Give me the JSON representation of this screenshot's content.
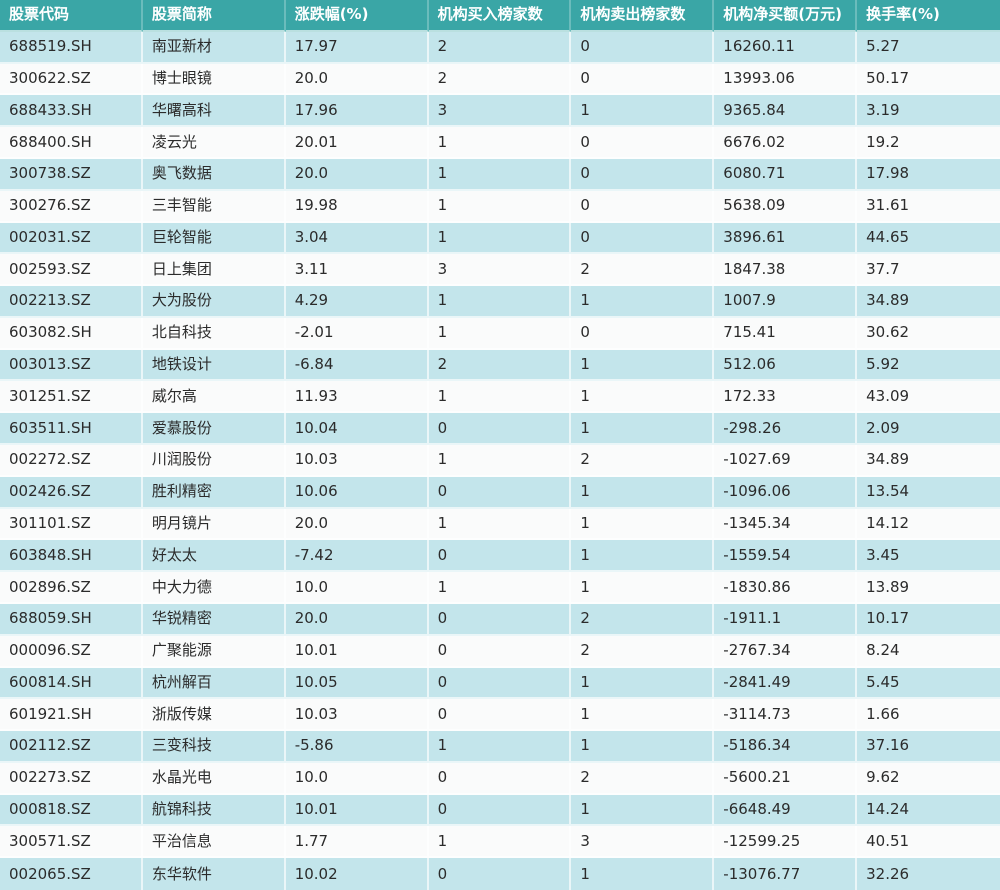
{
  "colors": {
    "header_bg": "#3aa6a6",
    "header_text": "#ffffff",
    "row_teal_bg": "#c3e5eb",
    "row_white_bg": "#fafbfb",
    "body_text": "#2b2b2b",
    "grid_line": "rgba(255,255,255,0.65)"
  },
  "chart_data": {
    "type": "table",
    "title": "",
    "legend": false,
    "grid": true,
    "columns": [
      "股票代码",
      "股票简称",
      "涨跌幅(%)",
      "机构买入榜家数",
      "机构卖出榜家数",
      "机构净买额(万元)",
      "换手率(%)"
    ],
    "rows": [
      [
        "688519.SH",
        "南亚新材",
        "17.97",
        "2",
        "0",
        "16260.11",
        "5.27"
      ],
      [
        "300622.SZ",
        "博士眼镜",
        "20.0",
        "2",
        "0",
        "13993.06",
        "50.17"
      ],
      [
        "688433.SH",
        "华曙高科",
        "17.96",
        "3",
        "1",
        "9365.84",
        "3.19"
      ],
      [
        "688400.SH",
        "凌云光",
        "20.01",
        "1",
        "0",
        "6676.02",
        "19.2"
      ],
      [
        "300738.SZ",
        "奥飞数据",
        "20.0",
        "1",
        "0",
        "6080.71",
        "17.98"
      ],
      [
        "300276.SZ",
        "三丰智能",
        "19.98",
        "1",
        "0",
        "5638.09",
        "31.61"
      ],
      [
        "002031.SZ",
        "巨轮智能",
        "3.04",
        "1",
        "0",
        "3896.61",
        "44.65"
      ],
      [
        "002593.SZ",
        "日上集团",
        "3.11",
        "3",
        "2",
        "1847.38",
        "37.7"
      ],
      [
        "002213.SZ",
        "大为股份",
        "4.29",
        "1",
        "1",
        "1007.9",
        "34.89"
      ],
      [
        "603082.SH",
        "北自科技",
        "-2.01",
        "1",
        "0",
        "715.41",
        "30.62"
      ],
      [
        "003013.SZ",
        "地铁设计",
        "-6.84",
        "2",
        "1",
        "512.06",
        "5.92"
      ],
      [
        "301251.SZ",
        "威尔高",
        "11.93",
        "1",
        "1",
        "172.33",
        "43.09"
      ],
      [
        "603511.SH",
        "爱慕股份",
        "10.04",
        "0",
        "1",
        "-298.26",
        "2.09"
      ],
      [
        "002272.SZ",
        "川润股份",
        "10.03",
        "1",
        "2",
        "-1027.69",
        "34.89"
      ],
      [
        "002426.SZ",
        "胜利精密",
        "10.06",
        "0",
        "1",
        "-1096.06",
        "13.54"
      ],
      [
        "301101.SZ",
        "明月镜片",
        "20.0",
        "1",
        "1",
        "-1345.34",
        "14.12"
      ],
      [
        "603848.SH",
        "好太太",
        "-7.42",
        "0",
        "1",
        "-1559.54",
        "3.45"
      ],
      [
        "002896.SZ",
        "中大力德",
        "10.0",
        "1",
        "1",
        "-1830.86",
        "13.89"
      ],
      [
        "688059.SH",
        "华锐精密",
        "20.0",
        "0",
        "2",
        "-1911.1",
        "10.17"
      ],
      [
        "000096.SZ",
        "广聚能源",
        "10.01",
        "0",
        "2",
        "-2767.34",
        "8.24"
      ],
      [
        "600814.SH",
        "杭州解百",
        "10.05",
        "0",
        "1",
        "-2841.49",
        "5.45"
      ],
      [
        "601921.SH",
        "浙版传媒",
        "10.03",
        "0",
        "1",
        "-3114.73",
        "1.66"
      ],
      [
        "002112.SZ",
        "三变科技",
        "-5.86",
        "1",
        "1",
        "-5186.34",
        "37.16"
      ],
      [
        "002273.SZ",
        "水晶光电",
        "10.0",
        "0",
        "2",
        "-5600.21",
        "9.62"
      ],
      [
        "000818.SZ",
        "航锦科技",
        "10.01",
        "0",
        "1",
        "-6648.49",
        "14.24"
      ],
      [
        "300571.SZ",
        "平治信息",
        "1.77",
        "1",
        "3",
        "-12599.25",
        "40.51"
      ],
      [
        "002065.SZ",
        "东华软件",
        "10.02",
        "0",
        "1",
        "-13076.77",
        "32.26"
      ]
    ]
  }
}
